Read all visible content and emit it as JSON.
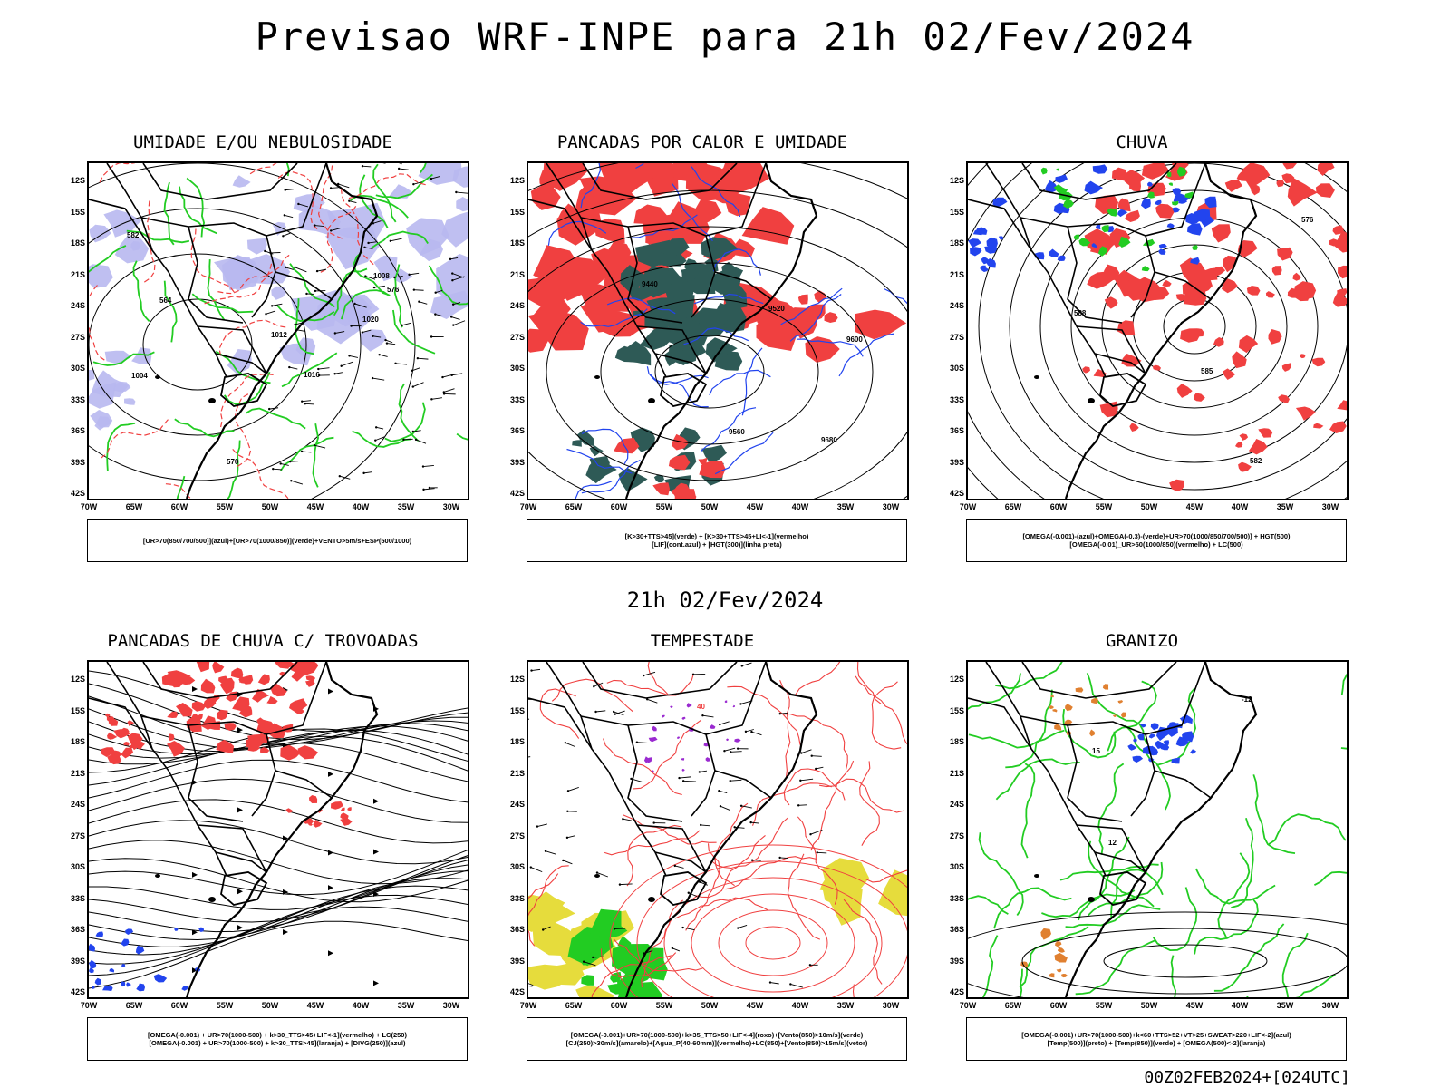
{
  "header": {
    "main_title": "Previsao WRF-INPE  para 21h 02/Fev/2024",
    "mid_date": "21h 02/Fev/2024",
    "footer_stamp": "00Z02FEB2024+[024UTC]"
  },
  "axes": {
    "lat_labels": [
      "12S",
      "15S",
      "18S",
      "21S",
      "24S",
      "27S",
      "30S",
      "33S",
      "36S",
      "39S",
      "42S"
    ],
    "lon_labels": [
      "70W",
      "65W",
      "60W",
      "55W",
      "50W",
      "45W",
      "40W",
      "35W",
      "30W"
    ]
  },
  "colors": {
    "red": "#f04040",
    "green": "#22cc22",
    "blue": "#2244ee",
    "lavender": "#b8b8f0",
    "teal": "#2e5a56",
    "yellow": "#e6dc3c",
    "orange": "#e08030",
    "purple": "#9a2ad0"
  },
  "panels": [
    {
      "title": "UMIDADE E/OU NEBULOSIDADE",
      "legend": [
        "[UR>70(850/700/500)](azul)+[UR>70(1000/850)](verde)+VENTO>5m/s+ESP(500/1000)"
      ],
      "contour_labels": [
        "1012",
        "1008",
        "1016",
        "1020",
        "576",
        "570",
        "582",
        "564",
        "1004"
      ]
    },
    {
      "title": "PANCADAS POR CALOR E UMIDADE",
      "legend": [
        "[K>30+TTS>45](verde)  +  [K>30+TTS>45+LI<-1](vermelho)",
        "[LIF](cont.azul)  +  [HGT(300)](linha preta)"
      ],
      "contour_labels": [
        "9600",
        "9680",
        "9520",
        "9440",
        "9560"
      ]
    },
    {
      "title": "CHUVA",
      "legend": [
        "[OMEGA(-0.001)-(azul)+OMEGA(-0.3)-(verde)+UR>70(1000/850/700/500)]  +  HGT(500)",
        "[OMEGA(-0.01)_UR>50(1000/850)(vermelho)  +  LC(500)"
      ],
      "contour_labels": [
        "588",
        "582",
        "576",
        "585"
      ]
    },
    {
      "title": "PANCADAS DE CHUVA C/ TROVOADAS",
      "legend": [
        "[OMEGA(-0.001)  +  UR>70(1000-500)  +  k>30_TTS>45+LIF<-1](vermelho)  +  LC(250)",
        "[OMEGA(-0.001)  +  UR>70(1000-500)  +  k>30_TTS>45](laranja)  +  [DIVG(250)](azul)"
      ],
      "contour_labels": []
    },
    {
      "title": "TEMPESTADE",
      "legend": [
        "[OMEGA(-0.001)+UR>70(1000-500)+k>35_TTS>50+LIF<-4](roxo)+[Vento(850)>10m/s](verde)",
        "[CJ(250)>30m/s](amarelo)+[Agua_P(40-60mm)](vermelho)+LC(850)+[Vento(850)>15m/s](vetor)"
      ],
      "contour_labels": [
        "40"
      ]
    },
    {
      "title": "GRANIZO",
      "legend": [
        "[OMEGA(-0.001)+UR>70(1000-500)+k<60+TTS>52+VT>25+SWEAT>220+LIF<-2](azul)",
        "[Temp(500)](preto)  +  [Temp(850)](verde)  +  [OMEGA(500)<-2](laranja)"
      ],
      "contour_labels": [
        "-12",
        "15",
        "12"
      ]
    }
  ]
}
